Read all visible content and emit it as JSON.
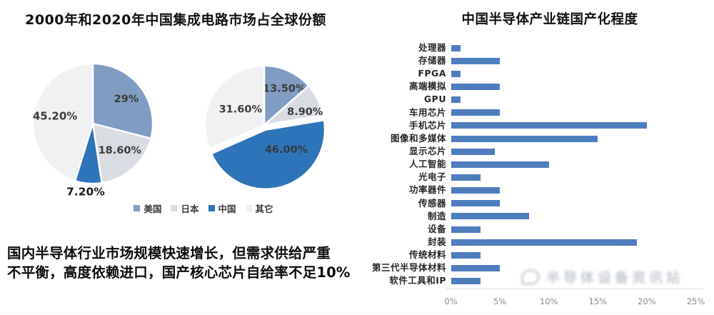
{
  "left": {
    "title": "2000年和2020年中国集成电路市场占全球份额",
    "note_line1": "国内半导体行业市场规模快速增长，但需求供给严重",
    "note_line2": "不平衡，高度依赖进口，国产核心芯片自给率不足10%"
  },
  "right": {
    "title": "中国半导体产业链国产化程度"
  },
  "watermark": "半导体设备资讯站",
  "colors": {
    "pie_usa": "#7f9cc3",
    "pie_japan": "#d9dde3",
    "pie_china": "#2e74b8",
    "pie_other": "#f0f1f3",
    "bar_blue": "#4d7dbd",
    "axis_gray": "#8a8a8a"
  },
  "pie_legend": {
    "position": "bottom",
    "items": [
      {
        "label": "美国",
        "color": "#7f9cc3"
      },
      {
        "label": "日本",
        "color": "#d9dde3"
      },
      {
        "label": "中国",
        "color": "#2e74b8"
      },
      {
        "label": "其它",
        "color": "#f0f1f3"
      }
    ]
  },
  "chart_data": [
    {
      "type": "pie",
      "year": "2000",
      "title": "2000年中国集成电路市场占全球份额",
      "categories": [
        "美国",
        "日本",
        "中国",
        "其它"
      ],
      "values": [
        29,
        18.6,
        7.2,
        45.2
      ],
      "data_labels": [
        "29%",
        "18.60%",
        "7.20%",
        "45.20%"
      ],
      "colors": [
        "#7f9cc3",
        "#d9dde3",
        "#2e74b8",
        "#f0f1f3"
      ],
      "start_angle": 0,
      "direction": "clockwise",
      "exploded_category": null
    },
    {
      "type": "pie",
      "year": "2020",
      "title": "2020年中国集成电路市场占全球份额",
      "categories": [
        "美国",
        "日本",
        "中国",
        "其它"
      ],
      "values": [
        13.5,
        8.9,
        46.0,
        31.6
      ],
      "data_labels": [
        "13.50%",
        "8.90%",
        "46.00%",
        "31.60%"
      ],
      "colors": [
        "#7f9cc3",
        "#d9dde3",
        "#2e74b8",
        "#f0f1f3"
      ],
      "start_angle": 0,
      "direction": "clockwise",
      "exploded_category": "中国"
    },
    {
      "type": "bar",
      "orientation": "horizontal",
      "title": "中国半导体产业链国产化程度",
      "categories": [
        "处理器",
        "存储器",
        "FPGA",
        "高端模拟",
        "GPU",
        "车用芯片",
        "手机芯片",
        "图像和多媒体",
        "显示芯片",
        "人工智能",
        "光电子",
        "功率器件",
        "传感器",
        "制造",
        "设备",
        "封装",
        "传统材料",
        "第三代半导体材料",
        "软件工具和IP"
      ],
      "values": [
        1,
        5,
        1,
        5,
        1,
        5,
        20,
        15,
        4.5,
        10,
        3,
        5,
        5,
        8,
        3,
        19,
        3,
        5,
        3
      ],
      "unit": "%",
      "xlim": [
        0,
        25
      ],
      "xticks": [
        "0%",
        "5%",
        "10%",
        "15%",
        "20%",
        "25%"
      ],
      "xtick_values": [
        0,
        5,
        10,
        15,
        20,
        25
      ],
      "grid": false,
      "bar_color": "#4d7dbd"
    }
  ]
}
